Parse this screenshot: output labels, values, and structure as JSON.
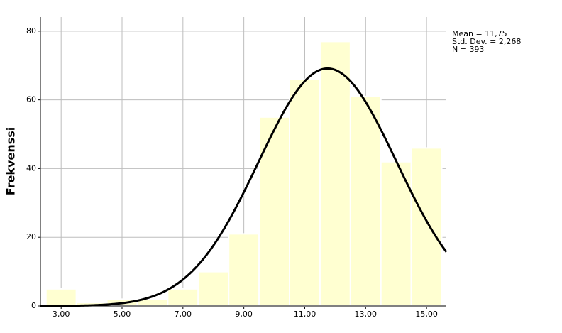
{
  "chart_data": {
    "type": "histogram",
    "y_label": "Frekvenssi",
    "bins": [
      2.5,
      3.5,
      4.5,
      5.5,
      6.5,
      7.5,
      8.5,
      9.5,
      10.5,
      11.5,
      12.5,
      13.5,
      14.5,
      15.5
    ],
    "values": [
      5,
      1,
      2,
      2,
      5,
      10,
      21,
      55,
      66,
      77,
      61,
      42,
      46
    ],
    "color": "#ffffd1",
    "xlim": [
      2.32,
      15.65
    ],
    "ylim": [
      0,
      84.1
    ],
    "xticks": [
      {
        "value": 3,
        "label": "3,00"
      },
      {
        "value": 5,
        "label": "5,00"
      },
      {
        "value": 7,
        "label": "7,00"
      },
      {
        "value": 9,
        "label": "9,00"
      },
      {
        "value": 11,
        "label": "11,00"
      },
      {
        "value": 13,
        "label": "13,00"
      },
      {
        "value": 15,
        "label": "15,00"
      }
    ],
    "yticks": [
      0,
      20,
      40,
      60,
      80
    ],
    "grid": true,
    "normal_curve": {
      "color": "#000000",
      "mean": {
        "value": 11.75,
        "label": "Mean = 11,75"
      },
      "sd": {
        "value": 2.268,
        "label": "Std. Dev. = 2,268"
      },
      "n": {
        "value": 393,
        "label": "N = 393"
      }
    }
  }
}
